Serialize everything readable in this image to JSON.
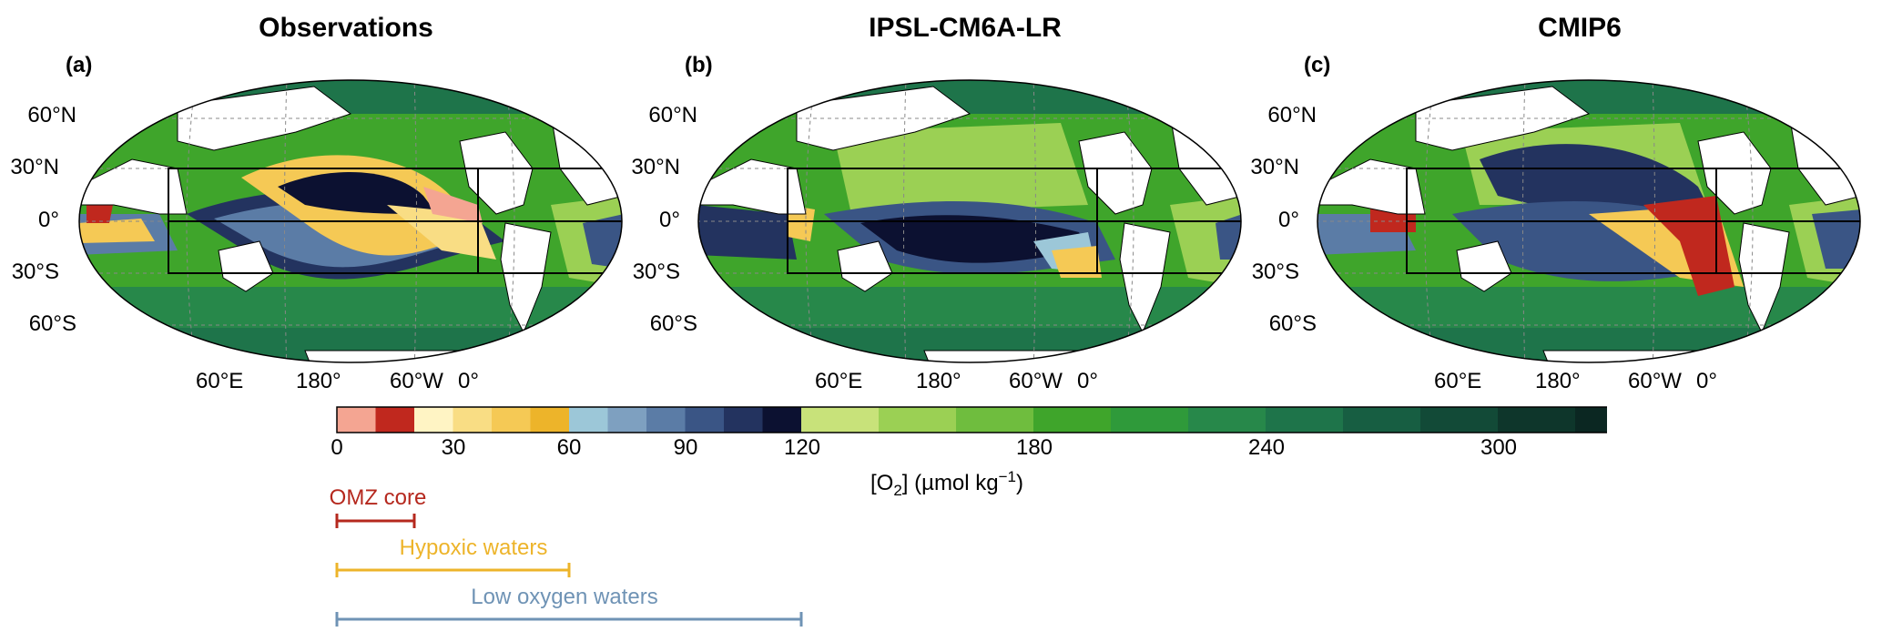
{
  "panels": [
    {
      "title": "Observations",
      "letter": "(a)"
    },
    {
      "title": "IPSL-CM6A-LR",
      "letter": "(b)"
    },
    {
      "title": "CMIP6",
      "letter": "(c)"
    }
  ],
  "lat_labels": [
    "60°N",
    "30°N",
    "0°",
    "30°S",
    "60°S"
  ],
  "lon_labels": [
    "60°E",
    "180°",
    "60°W",
    "0°"
  ],
  "colorbar": {
    "ticks": [
      "0",
      "30",
      "60",
      "90",
      "120",
      "180",
      "240",
      "300"
    ],
    "label_prefix": "[O",
    "label_sub": "2",
    "label_suffix": "] (µmol kg",
    "label_sup": "−1",
    "label_end": ")",
    "colors": [
      "#f4a592",
      "#c0281e",
      "#fff4c4",
      "#f9dd84",
      "#f5c955",
      "#edb42a",
      "#9cc7d8",
      "#7ea0c0",
      "#5b7ca6",
      "#3a5585",
      "#23335f",
      "#0c1131",
      "#c8e27a",
      "#9bd054",
      "#6fbd3e",
      "#3fa52b",
      "#2f9a3a",
      "#27884a",
      "#1e744a",
      "#175e42",
      "#124a37",
      "#0e362b",
      "#0b2722"
    ]
  },
  "ranges": [
    {
      "label": "OMZ core",
      "max": 20,
      "color": "#b5281e"
    },
    {
      "label": "Hypoxic waters",
      "max": 60,
      "color": "#edb42a"
    },
    {
      "label": "Low oxygen waters",
      "max": 120,
      "color": "#6f93b5"
    }
  ]
}
